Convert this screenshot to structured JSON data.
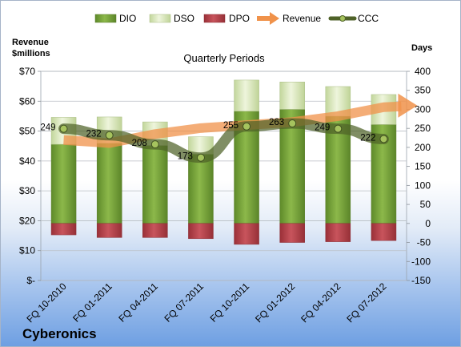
{
  "chart_data": {
    "type": "bar",
    "title": "Quarterly Periods",
    "company": "Cyberonics",
    "categories": [
      "FQ 10-2010",
      "FQ 01-2011",
      "FQ 04-2011",
      "FQ 07-2011",
      "FQ 10-2011",
      "FQ 01-2012",
      "FQ 04-2012",
      "FQ 07-2012"
    ],
    "y_left": {
      "label_line1": "Revenue",
      "label_line2": "$millions",
      "ylim": [
        0,
        70
      ],
      "ticks": [
        0,
        10,
        20,
        30,
        40,
        50,
        60,
        70
      ],
      "tick_labels": [
        "$-",
        "$10",
        "$20",
        "$30",
        "$40",
        "$50",
        "$60",
        "$70"
      ]
    },
    "y_right": {
      "label": "Days",
      "ylim": [
        -150,
        400
      ],
      "ticks": [
        -150,
        -100,
        -50,
        0,
        50,
        100,
        150,
        200,
        250,
        300,
        350,
        400
      ],
      "tick_labels": [
        "-150",
        "-100",
        "-50",
        "0",
        "50",
        "100",
        "150",
        "200",
        "250",
        "300",
        "350",
        "400"
      ]
    },
    "grid": true,
    "legend_position": "top",
    "series": [
      {
        "name": "DIO",
        "type": "bar",
        "axis": "right",
        "color": "#77a03a",
        "values": [
          208,
          211,
          205,
          182,
          295,
          300,
          282,
          260
        ]
      },
      {
        "name": "DSO",
        "type": "bar",
        "axis": "right",
        "color": "#d7e4bc",
        "values": [
          71,
          69,
          62,
          46,
          82,
          72,
          78,
          79
        ]
      },
      {
        "name": "DPO",
        "type": "bar",
        "axis": "right",
        "color": "#b7414a",
        "values": [
          -30,
          -37,
          -37,
          -40,
          -55,
          -50,
          -48,
          -45
        ]
      },
      {
        "name": "Revenue",
        "type": "arrow",
        "axis": "left",
        "color": "#f0924a",
        "values": [
          47,
          46,
          49,
          51,
          52,
          53,
          55,
          58
        ]
      },
      {
        "name": "CCC",
        "type": "line",
        "axis": "right",
        "color": "#4f6228",
        "values": [
          249,
          232,
          208,
          173,
          255,
          263,
          249,
          222
        ],
        "labels": [
          "249",
          "232",
          "208",
          "173",
          "255",
          "263",
          "249",
          "222"
        ]
      }
    ]
  }
}
